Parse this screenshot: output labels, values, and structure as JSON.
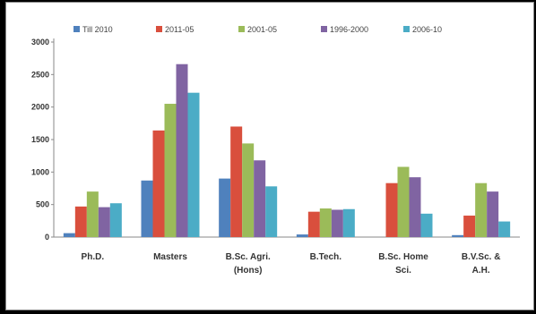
{
  "chart_data": {
    "type": "bar",
    "title": "",
    "xlabel": "",
    "ylabel": "",
    "categories": [
      "Ph.D.",
      "Masters",
      "B.Sc. Agri. (Hons)",
      "B.Tech.",
      "B.Sc. Home Sci.",
      "B.V.Sc. & A.H."
    ],
    "category_lines": [
      [
        "Ph.D."
      ],
      [
        "Masters"
      ],
      [
        "B.Sc. Agri.",
        "(Hons)"
      ],
      [
        "B.Tech."
      ],
      [
        "B.Sc. Home",
        "Sci."
      ],
      [
        "B.V.Sc. &",
        "A.H."
      ]
    ],
    "series": [
      {
        "name": "Till 2010",
        "color": "#4f81bd",
        "values": [
          60,
          870,
          900,
          40,
          0,
          30
        ]
      },
      {
        "name": "2011-05",
        "color": "#d94f3d",
        "values": [
          470,
          1640,
          1700,
          390,
          830,
          330
        ]
      },
      {
        "name": "2001-05",
        "color": "#9bbb59",
        "values": [
          700,
          2050,
          1440,
          440,
          1080,
          830
        ]
      },
      {
        "name": "1996-2000",
        "color": "#8064a2",
        "values": [
          460,
          2660,
          1180,
          420,
          920,
          700
        ]
      },
      {
        "name": "2006-10",
        "color": "#4bacc6",
        "values": [
          520,
          2220,
          780,
          430,
          360,
          240
        ]
      }
    ],
    "y_ticks": [
      "0",
      "500",
      "1000",
      "1500",
      "2000",
      "2500",
      "3000"
    ],
    "ylim": [
      0,
      3000
    ],
    "grid": false,
    "legend_position": "top"
  }
}
